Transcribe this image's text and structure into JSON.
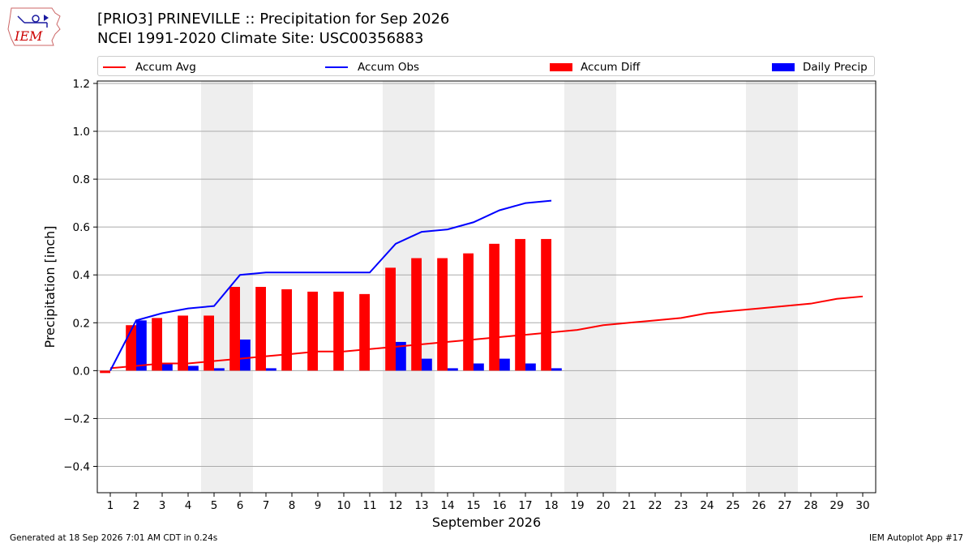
{
  "header": {
    "title_line1": "[PRIO3] PRINEVILLE :: Precipitation for Sep 2026",
    "title_line2": "NCEI 1991-2020 Climate Site: USC00356883"
  },
  "logo": {
    "text": "IEM",
    "color": "#cc0000"
  },
  "legend": {
    "accum_avg": "Accum Avg",
    "accum_obs": "Accum Obs",
    "accum_diff": "Accum Diff",
    "daily_precip": "Daily Precip"
  },
  "footer": {
    "left": "Generated at 18 Sep 2026 7:01 AM CDT in 0.24s",
    "right": "IEM Autoplot App #17"
  },
  "colors": {
    "avg": "#ff0000",
    "obs": "#0000ff",
    "diff": "#ff0000",
    "daily": "#0000ff",
    "weekend_shade": "#eeeeee",
    "grid": "#aaaaaa"
  },
  "chart_data": {
    "type": "bar",
    "xlabel": "September 2026",
    "ylabel": "Precipitation [inch]",
    "xlim": [
      0.5,
      30.5
    ],
    "ylim": [
      -0.51,
      1.21
    ],
    "y_ticks": [
      -0.4,
      -0.2,
      0.0,
      0.2,
      0.4,
      0.6,
      0.8,
      1.0,
      1.2
    ],
    "y_tick_labels": [
      "−0.4",
      "−0.2",
      "0.0",
      "0.2",
      "0.4",
      "0.6",
      "0.8",
      "1.0",
      "1.2"
    ],
    "categories": [
      "1",
      "2",
      "3",
      "4",
      "5",
      "6",
      "7",
      "8",
      "9",
      "10",
      "11",
      "12",
      "13",
      "14",
      "15",
      "16",
      "17",
      "18",
      "19",
      "20",
      "21",
      "22",
      "23",
      "24",
      "25",
      "26",
      "27",
      "28",
      "29",
      "30"
    ],
    "grid": "horizontal",
    "legend_position": "top",
    "weekend_days": [
      5,
      6,
      12,
      13,
      19,
      20,
      26,
      27
    ],
    "series": [
      {
        "name": "Accum Avg",
        "type": "line",
        "x": [
          1,
          2,
          3,
          4,
          5,
          6,
          7,
          8,
          9,
          10,
          11,
          12,
          13,
          14,
          15,
          16,
          17,
          18,
          19,
          20,
          21,
          22,
          23,
          24,
          25,
          26,
          27,
          28,
          29,
          30
        ],
        "values": [
          0.01,
          0.02,
          0.03,
          0.03,
          0.04,
          0.05,
          0.06,
          0.07,
          0.08,
          0.08,
          0.09,
          0.1,
          0.11,
          0.12,
          0.13,
          0.14,
          0.15,
          0.16,
          0.17,
          0.19,
          0.2,
          0.21,
          0.22,
          0.24,
          0.25,
          0.26,
          0.27,
          0.28,
          0.3,
          0.31
        ]
      },
      {
        "name": "Accum Obs",
        "type": "line",
        "x": [
          1,
          2,
          3,
          4,
          5,
          6,
          7,
          8,
          9,
          10,
          11,
          12,
          13,
          14,
          15,
          16,
          17,
          18
        ],
        "values": [
          0.0,
          0.21,
          0.24,
          0.26,
          0.27,
          0.4,
          0.41,
          0.41,
          0.41,
          0.41,
          0.41,
          0.53,
          0.58,
          0.59,
          0.62,
          0.67,
          0.7,
          0.71
        ]
      },
      {
        "name": "Accum Diff",
        "type": "bar",
        "x": [
          1,
          2,
          3,
          4,
          5,
          6,
          7,
          8,
          9,
          10,
          11,
          12,
          13,
          14,
          15,
          16,
          17,
          18
        ],
        "values": [
          -0.01,
          0.19,
          0.22,
          0.23,
          0.23,
          0.35,
          0.35,
          0.34,
          0.33,
          0.33,
          0.32,
          0.43,
          0.47,
          0.47,
          0.49,
          0.53,
          0.55,
          0.55
        ]
      },
      {
        "name": "Daily Precip",
        "type": "bar",
        "x": [
          1,
          2,
          3,
          4,
          5,
          6,
          7,
          8,
          9,
          10,
          11,
          12,
          13,
          14,
          15,
          16,
          17,
          18
        ],
        "values": [
          0.0,
          0.21,
          0.03,
          0.02,
          0.01,
          0.13,
          0.01,
          0.0,
          0.0,
          0.0,
          0.0,
          0.12,
          0.05,
          0.01,
          0.03,
          0.05,
          0.03,
          0.01
        ]
      }
    ]
  }
}
